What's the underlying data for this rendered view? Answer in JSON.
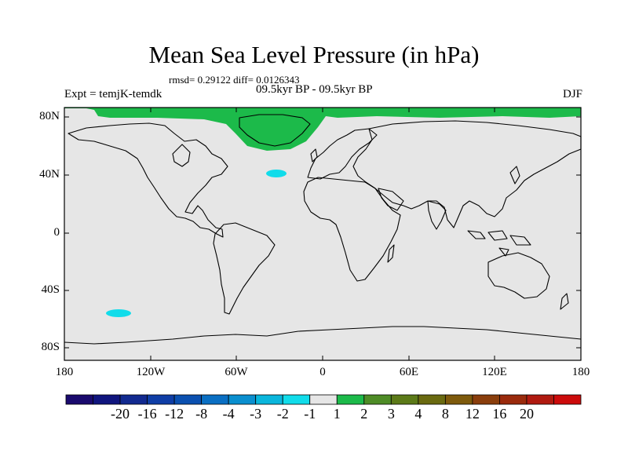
{
  "title": "Mean Sea Level Pressure (in hPa)",
  "stats_line": "rmsd= 0.29122 diff= 0.0126343",
  "period_line": "09.5kyr BP - 09.5kyr BP",
  "experiment": "Expt = temjK-temdk",
  "season": "DJF",
  "y_ticks": [
    "80N",
    "40N",
    "0",
    "40S",
    "80S"
  ],
  "x_ticks": [
    "180",
    "120W",
    "60W",
    "0",
    "60E",
    "120E",
    "180"
  ],
  "colorbar": {
    "colors": [
      "#1a0a6e",
      "#10157e",
      "#122a90",
      "#0f3ea6",
      "#0b50b0",
      "#0a6fc3",
      "#0a8fcf",
      "#0ab6dc",
      "#11dcea",
      "#e6e6e6",
      "#1cba4a",
      "#4e8c26",
      "#5c7a18",
      "#6a6a10",
      "#7e5a0c",
      "#8a3e0c",
      "#9a2a0c",
      "#b01a10",
      "#cc0b0b"
    ],
    "labels": [
      "-20",
      "-16",
      "-12",
      "-8",
      "-4",
      "-3",
      "-2",
      "-1",
      "1",
      "2",
      "3",
      "4",
      "8",
      "12",
      "16",
      "20"
    ]
  },
  "map_colors": {
    "background": "#e6e6e6",
    "positive": "#1cba4a",
    "negative": "#11dcea"
  }
}
